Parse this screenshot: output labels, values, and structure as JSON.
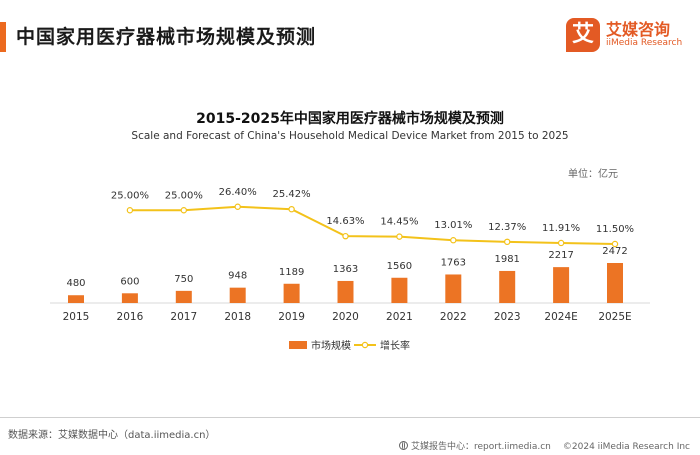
{
  "header": {
    "title": "中国家用医疗器械市场规模及预测"
  },
  "logo": {
    "mark": "艾",
    "name_cn": "艾媒咨询",
    "name_en": "iiMedia Research"
  },
  "chart_data": {
    "type": "bar+line",
    "title": "2015-2025年中国家用医疗器械市场规模及预测",
    "subtitle": "Scale and Forecast of China's Household Medical Device Market from 2015 to 2025",
    "unit": "单位：亿元",
    "categories": [
      "2015",
      "2016",
      "2017",
      "2018",
      "2019",
      "2020",
      "2021",
      "2022",
      "2023",
      "2024E",
      "2025E"
    ],
    "series": [
      {
        "name": "市场规模",
        "type": "bar",
        "color": "#ec7424",
        "values": [
          480,
          600,
          750,
          948,
          1189,
          1363,
          1560,
          1763,
          1981,
          2217,
          2472
        ],
        "labels": [
          "480",
          "600",
          "750",
          "948",
          "1189",
          "1363",
          "1560",
          "1763",
          "1981",
          "2217",
          "2472"
        ]
      },
      {
        "name": "增长率",
        "type": "line",
        "color": "#f3c21a",
        "values": [
          null,
          25.0,
          25.0,
          26.4,
          25.42,
          14.63,
          14.45,
          13.01,
          12.37,
          11.91,
          11.5
        ],
        "labels": [
          "",
          "25.00%",
          "25.00%",
          "26.40%",
          "25.42%",
          "14.63%",
          "14.45%",
          "13.01%",
          "12.37%",
          "11.91%",
          "11.50%"
        ]
      }
    ],
    "legend_position": "bottom",
    "grid": false
  },
  "footer": {
    "source": "数据来源：艾媒数据中心（data.iimedia.cn）",
    "report_center": "艾媒报告中心：report.iimedia.cn",
    "copyright": "©2024  iiMedia Research Inc"
  }
}
